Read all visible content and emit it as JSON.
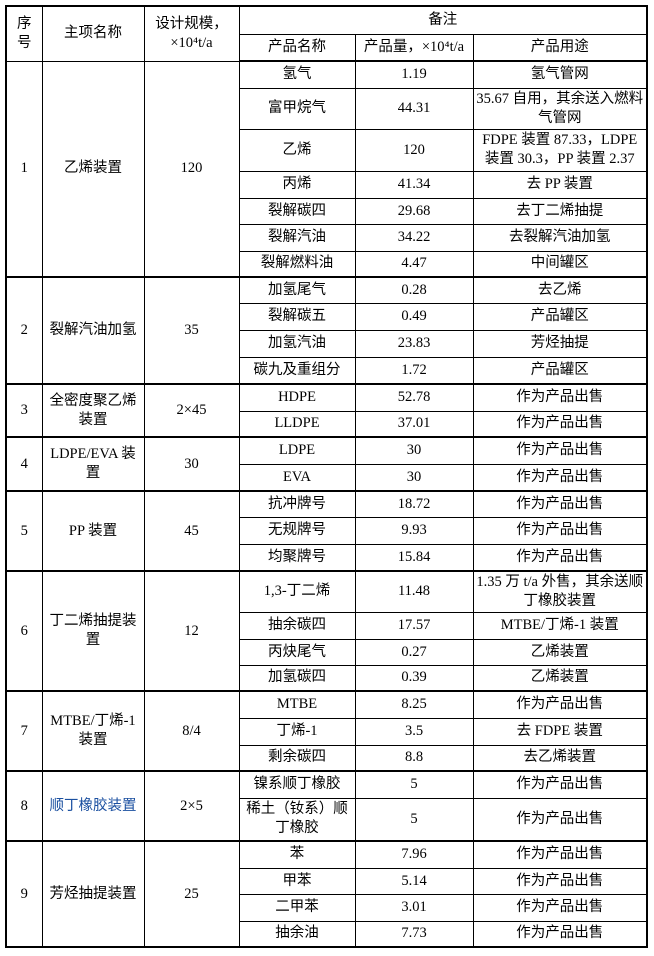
{
  "header": {
    "index": "序号",
    "item_name": "主项名称",
    "design_scale": "设计规模，×10⁴t/a",
    "remarks": "备注",
    "product_name": "产品名称",
    "product_amount": "产品量，×10⁴t/a",
    "product_use": "产品用途"
  },
  "groups": [
    {
      "index": "1",
      "name": "乙烯装置",
      "scale": "120",
      "products": [
        {
          "name": "氢气",
          "amount": "1.19",
          "use": "氢气管网"
        },
        {
          "name": "富甲烷气",
          "amount": "44.31",
          "use": "35.67 自用，其余送入燃料气管网"
        },
        {
          "name": "乙烯",
          "amount": "120",
          "use": "FDPE 装置 87.33，LDPE 装置 30.3，PP 装置 2.37"
        },
        {
          "name": "丙烯",
          "amount": "41.34",
          "use": "去 PP 装置"
        },
        {
          "name": "裂解碳四",
          "amount": "29.68",
          "use": "去丁二烯抽提"
        },
        {
          "name": "裂解汽油",
          "amount": "34.22",
          "use": "去裂解汽油加氢"
        },
        {
          "name": "裂解燃料油",
          "amount": "4.47",
          "use": "中间罐区"
        }
      ]
    },
    {
      "index": "2",
      "name": "裂解汽油加氢",
      "scale": "35",
      "products": [
        {
          "name": "加氢尾气",
          "amount": "0.28",
          "use": "去乙烯"
        },
        {
          "name": "裂解碳五",
          "amount": "0.49",
          "use": "产品罐区"
        },
        {
          "name": "加氢汽油",
          "amount": "23.83",
          "use": "芳烃抽提"
        },
        {
          "name": "碳九及重组分",
          "amount": "1.72",
          "use": "产品罐区"
        }
      ]
    },
    {
      "index": "3",
      "name": "全密度聚乙烯装置",
      "scale": "2×45",
      "products": [
        {
          "name": "HDPE",
          "amount": "52.78",
          "use": "作为产品出售"
        },
        {
          "name": "LLDPE",
          "amount": "37.01",
          "use": "作为产品出售"
        }
      ]
    },
    {
      "index": "4",
      "name": "LDPE/EVA 装置",
      "scale": "30",
      "products": [
        {
          "name": "LDPE",
          "amount": "30",
          "use": "作为产品出售"
        },
        {
          "name": "EVA",
          "amount": "30",
          "use": "作为产品出售"
        }
      ]
    },
    {
      "index": "5",
      "name": "PP 装置",
      "scale": "45",
      "products": [
        {
          "name": "抗冲牌号",
          "amount": "18.72",
          "use": "作为产品出售"
        },
        {
          "name": "无规牌号",
          "amount": "9.93",
          "use": "作为产品出售"
        },
        {
          "name": "均聚牌号",
          "amount": "15.84",
          "use": "作为产品出售"
        }
      ]
    },
    {
      "index": "6",
      "name": "丁二烯抽提装置",
      "scale": "12",
      "products": [
        {
          "name": "1,3-丁二烯",
          "amount": "11.48",
          "use": "1.35 万 t/a 外售，其余送顺丁橡胶装置"
        },
        {
          "name": "抽余碳四",
          "amount": "17.57",
          "use": "MTBE/丁烯-1 装置"
        },
        {
          "name": "丙炔尾气",
          "amount": "0.27",
          "use": "乙烯装置"
        },
        {
          "name": "加氢碳四",
          "amount": "0.39",
          "use": "乙烯装置"
        }
      ]
    },
    {
      "index": "7",
      "name": "MTBE/丁烯-1 装置",
      "scale": "8/4",
      "products": [
        {
          "name": "MTBE",
          "amount": "8.25",
          "use": "作为产品出售"
        },
        {
          "name": "丁烯-1",
          "amount": "3.5",
          "use": "去 FDPE 装置"
        },
        {
          "name": "剩余碳四",
          "amount": "8.8",
          "use": "去乙烯装置"
        }
      ]
    },
    {
      "index": "8",
      "name": "顺丁橡胶装置",
      "scale": "2×5",
      "products": [
        {
          "name": "镍系顺丁橡胶",
          "amount": "5",
          "use": "作为产品出售"
        },
        {
          "name": "稀土（钕系）顺丁橡胶",
          "amount": "5",
          "use": "作为产品出售"
        }
      ]
    },
    {
      "index": "9",
      "name": "芳烃抽提装置",
      "scale": "25",
      "products": [
        {
          "name": "苯",
          "amount": "7.96",
          "use": "作为产品出售"
        },
        {
          "name": "甲苯",
          "amount": "5.14",
          "use": "作为产品出售"
        },
        {
          "name": "二甲苯",
          "amount": "3.01",
          "use": "作为产品出售"
        },
        {
          "name": "抽余油",
          "amount": "7.73",
          "use": "作为产品出售"
        }
      ]
    }
  ]
}
